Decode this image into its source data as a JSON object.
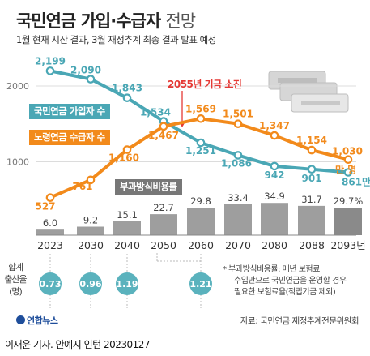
{
  "title": "국민연금 가입·수급자",
  "title_suffix": "전망",
  "subtitle": "1월 현재 시산 결과, 3월 재정추계 최종 결과 발표 예정",
  "colors": {
    "subscribers": "#4aa7b5",
    "recipients": "#f28a1b",
    "bars": "#9e9e9e",
    "bar_last": "#8a8a8a",
    "highlight": "#e53935",
    "tfr_circle": "#5ab2bd"
  },
  "chart_data": {
    "type": "line",
    "x": [
      "2023",
      "2030",
      "2040",
      "2050",
      "2060",
      "2070",
      "2080",
      "2088",
      "2093년"
    ],
    "yticks": [
      1000,
      2000
    ],
    "ylim": [
      0,
      2300
    ],
    "grid": true,
    "series": [
      {
        "name": "국민연금 가입자 수",
        "values": [
          2199,
          2090,
          1843,
          1534,
          1251,
          1086,
          942,
          901,
          861
        ]
      },
      {
        "name": "노령연금 수급자 수",
        "values": [
          527,
          761,
          1160,
          1467,
          1569,
          1501,
          1347,
          1154,
          1030
        ]
      }
    ],
    "bar_series": {
      "name": "부과방식비용률",
      "values": [
        6.0,
        9.2,
        15.1,
        22.7,
        29.8,
        33.4,
        34.9,
        31.7,
        29.7
      ],
      "value_labels": [
        "6.0",
        "9.2",
        "15.1",
        "22.7",
        "29.8",
        "33.4",
        "34.9",
        "31.7",
        "29.7%"
      ]
    },
    "end_labels": {
      "recipients": "만 명",
      "subscribers": "861만 명"
    },
    "annotation": {
      "label": "2055년 기금 소진",
      "year": 2055
    },
    "tfr": {
      "label_lines": [
        "합계",
        "출산율",
        "(명)"
      ],
      "values": [
        "0.73",
        "0.96",
        "1.19",
        "1.21"
      ],
      "at": [
        "2023",
        "2030",
        "2040",
        "2060"
      ]
    }
  },
  "footnote": [
    "* 부과방식비용률: 매년 보험료",
    "수입만으로 국민연금을 운영할 경우",
    "필요한 보험료율(적립기금 제외)"
  ],
  "source": "자료: 국민연금 재정추계전문위원회",
  "logo": "연합뉴스",
  "credit": "이재윤 기자. 안예지 인턴  20230127"
}
